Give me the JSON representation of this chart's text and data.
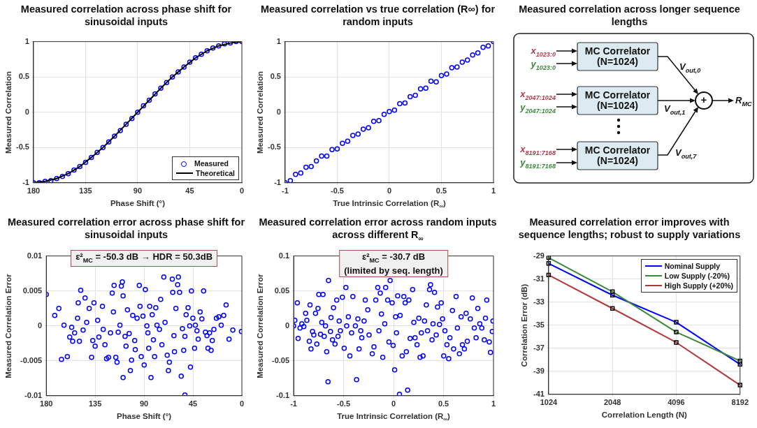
{
  "chart_data": [
    {
      "type": "line",
      "title": "Measured correlation across phase shift for sinusoidal inputs",
      "xlabel": "Phase Shift (°)",
      "ylabel": "Measured Correlation",
      "xlim": [
        180,
        0
      ],
      "xticks": [
        180,
        135,
        90,
        45,
        0
      ],
      "ylim": [
        -1,
        1
      ],
      "yticks": [
        -1,
        -0.5,
        0,
        0.5,
        1
      ],
      "grid": true,
      "legend": "bottom right",
      "series": [
        {
          "name": "Measured",
          "type": "scatter",
          "marker": "circle",
          "color": "#0000ff",
          "x": [
            180,
            175,
            170,
            165,
            160,
            155,
            150,
            145,
            140,
            135,
            130,
            125,
            120,
            115,
            110,
            105,
            100,
            95,
            90,
            85,
            80,
            75,
            70,
            65,
            60,
            55,
            50,
            45,
            40,
            35,
            30,
            25,
            20,
            15,
            10,
            5,
            0
          ],
          "values": [
            -1,
            -1,
            -0.98,
            -0.97,
            -0.94,
            -0.91,
            -0.87,
            -0.82,
            -0.77,
            -0.71,
            -0.64,
            -0.57,
            -0.5,
            -0.42,
            -0.34,
            -0.26,
            -0.17,
            -0.09,
            0,
            0.09,
            0.17,
            0.26,
            0.34,
            0.42,
            0.5,
            0.57,
            0.64,
            0.71,
            0.77,
            0.82,
            0.87,
            0.91,
            0.94,
            0.97,
            0.98,
            1,
            1
          ]
        },
        {
          "name": "Theoretical",
          "type": "line",
          "color": "#000000",
          "x": [
            180,
            170,
            160,
            150,
            140,
            130,
            120,
            110,
            100,
            90,
            80,
            70,
            60,
            50,
            40,
            30,
            20,
            10,
            0
          ],
          "values": [
            -1,
            -0.98,
            -0.94,
            -0.87,
            -0.77,
            -0.64,
            -0.5,
            -0.34,
            -0.17,
            0,
            0.17,
            0.34,
            0.5,
            0.64,
            0.77,
            0.87,
            0.94,
            0.98,
            1
          ]
        }
      ]
    },
    {
      "type": "scatter",
      "title": "Measured correlation vs true correlation (R∞) for random inputs",
      "xlabel": "True Intrinsic Correlation (R$_{∞}$)",
      "ylabel": "Measured Correlation",
      "xlim": [
        -1,
        1
      ],
      "xticks": [
        -1,
        -0.5,
        0,
        0.5,
        1
      ],
      "ylim": [
        -1,
        1
      ],
      "yticks": [
        -1,
        -0.5,
        0,
        0.5,
        1
      ],
      "grid": true,
      "marker": "circle",
      "series": [
        {
          "color": "#0000ff",
          "x": [
            -1,
            -0.95,
            -0.9,
            -0.85,
            -0.8,
            -0.75,
            -0.7,
            -0.65,
            -0.6,
            -0.55,
            -0.5,
            -0.45,
            -0.4,
            -0.35,
            -0.3,
            -0.25,
            -0.2,
            -0.15,
            -0.1,
            -0.05,
            0,
            0.05,
            0.1,
            0.15,
            0.2,
            0.25,
            0.3,
            0.35,
            0.4,
            0.45,
            0.5,
            0.55,
            0.6,
            0.65,
            0.7,
            0.75,
            0.8,
            0.85,
            0.9,
            0.95,
            1
          ],
          "values": [
            -1,
            -0.97,
            -0.88,
            -0.86,
            -0.78,
            -0.77,
            -0.69,
            -0.62,
            -0.62,
            -0.53,
            -0.52,
            -0.44,
            -0.41,
            -0.33,
            -0.31,
            -0.24,
            -0.22,
            -0.13,
            -0.12,
            -0.03,
            0.01,
            0.03,
            0.12,
            0.13,
            0.22,
            0.24,
            0.33,
            0.34,
            0.44,
            0.43,
            0.52,
            0.54,
            0.63,
            0.64,
            0.71,
            0.74,
            0.81,
            0.84,
            0.92,
            0.94,
            1
          ]
        }
      ]
    },
    {
      "type": "other",
      "title": "Measured correlation across longer sequence lengths",
      "annotations": [
        "x$_{1023:0}$",
        "y$_{1023:0}$",
        "x$_{2047:1024}$",
        "y$_{2047:1024}$",
        "x$_{8191:7168}$",
        "y$_{8191:7168}$",
        "MC Correlator\n(N=1024)",
        "MC Correlator\n(N=1024)",
        "MC Correlator\n(N=1024)",
        "V$_{out,0}$",
        "V$_{out,1}$",
        "V$_{out,7}$",
        "+",
        "R$_{MC}$"
      ]
    },
    {
      "type": "scatter",
      "title": "Measured correlation error across phase shift for sinusoidal inputs",
      "xlabel": "Phase Shift (°)",
      "ylabel": "Measured Correlation Error",
      "xlim": [
        180,
        0
      ],
      "xticks": [
        180,
        135,
        90,
        45,
        0
      ],
      "ylim": [
        -0.01,
        0.01
      ],
      "yticks": [
        -0.01,
        -0.005,
        0,
        0.005,
        0.01
      ],
      "grid": true,
      "marker": "circle",
      "annotations": [
        "ε²$_{MC}$ = -50.3 dB → HDR = 50.3dB"
      ],
      "series": [
        {
          "color": "#0000ff",
          "x": [
            180,
            172.2,
            168.4,
            166,
            163.7,
            160.6,
            158.4,
            156.6,
            155.7,
            153.9,
            150.6,
            151.2,
            149.5,
            148.3,
            146.1,
            144.3,
            142.8,
            140.5,
            138.3,
            137.2,
            136.1,
            135,
            132.7,
            131.6,
            128.3,
            127.6,
            126,
            124.5,
            122.7,
            120.9,
            119.3,
            118.2,
            117.6,
            116,
            114.9,
            113.8,
            112.2,
            110.9,
            110,
            109.3,
            109.3,
            107.5,
            106.6,
            105.3,
            103.7,
            102.6,
            101.5,
            100.4,
            98.6,
            98.1,
            96.4,
            94.4,
            93.7,
            92.6,
            91,
            89.9,
            88.8,
            87.4,
            86.5,
            85.7,
            84.8,
            83.6,
            82.5,
            81.4,
            80.3,
            79.2,
            78.1,
            75.8,
            74.7,
            73.6,
            71.8,
            70.7,
            68.7,
            67.6,
            66.7,
            64,
            63.6,
            62.5,
            62,
            60.7,
            59.1,
            58.4,
            57.3,
            55.8,
            54.7,
            53.5,
            52.4,
            52.4,
            51.3,
            49.5,
            48,
            47.3,
            46.4,
            45.1,
            43.5,
            42.8,
            41.3,
            40.2,
            38.4,
            36.8,
            35.2,
            33.5,
            32.1,
            31.2,
            29.7,
            28.3,
            27.2,
            25.7,
            23.4,
            21.2,
            19,
            16.7,
            14.5,
            11.8,
            8.3,
            0.4
          ],
          "values": [
            0.0045,
            0.0015,
            0.0025,
            -0.0048,
            0.0001,
            -0.0044,
            -0.0016,
            -0.0002,
            -0.0022,
            -0.001,
            0.0033,
            0.0011,
            -0.0022,
            0.0051,
            -0.0006,
            0.004,
            0.0005,
            0.0025,
            -0.0045,
            -0.0021,
            0.0033,
            -0.0029,
            0.0008,
            -0.0016,
            0.0028,
            -0.0005,
            -0.0027,
            -0.0047,
            -0.0045,
            -0.001,
            0.0047,
            0.002,
            0.0058,
            -0.0045,
            -0.0052,
            -0.0009,
            0.0001,
            0.0057,
            0.0063,
            0.0043,
            -0.0074,
            -0.0015,
            -0.0029,
            0.0023,
            -0.0011,
            -0.0064,
            -0.0049,
            0.0015,
            -0.0021,
            -0.0034,
            0.0011,
            0.0058,
            0.0028,
            -0.0044,
            0.0014,
            -0.0056,
            0.0052,
            0,
            -0.001,
            -0.0032,
            0.0028,
            -0.0074,
            0.0016,
            -0.002,
            -0.0044,
            0.0026,
            0.0001,
            -0.0005,
            0.0038,
            -0.0027,
            0.007,
            0.0005,
            -0.0042,
            -0.0064,
            -0.0052,
            0.0067,
            0.0048,
            -0.0014,
            -0.0037,
            0.0025,
            0.0059,
            0.007,
            0.0048,
            -0.0072,
            -0.0004,
            -0.0035,
            -0.0015,
            -0.0099,
            0.0016,
            0.0026,
            0,
            -0.0059,
            0.005,
            0.0011,
            -0.0032,
            0.0001,
            -0.0007,
            -0.0019,
            0.002,
            0.001,
            0.005,
            -0.0009,
            -0.0014,
            -0.0032,
            -0.001,
            -0.0035,
            -0.0021,
            -0.0005,
            0.0011,
            0.0013,
            0.0001,
            0.0015,
            0.003,
            -0.0019,
            -0.0006,
            -0.0008
          ]
        }
      ]
    },
    {
      "type": "scatter",
      "title": "Measured correlation error across random inputs across different R$_{∞}$",
      "xlabel": "True Intrinsic Correlation (R$_{∞}$)",
      "ylabel": "Measured Correlation Error",
      "xlim": [
        -1,
        1
      ],
      "xticks": [
        -1,
        -0.5,
        0,
        0.5,
        1
      ],
      "ylim": [
        -0.1,
        0.1
      ],
      "yticks": [
        -0.1,
        -0.05,
        0,
        0.05,
        0.1
      ],
      "grid": true,
      "marker": "circle",
      "annotations": [
        "ε²$_{MC}$ = -30.7 dB\n(limited by seq. length)"
      ],
      "series": [
        {
          "color": "#0000ff",
          "x": [
            -1,
            -0.988,
            -0.963,
            -0.955,
            -0.936,
            -0.918,
            -0.898,
            -0.88,
            -0.868,
            -0.843,
            -0.836,
            -0.826,
            -0.811,
            -0.798,
            -0.781,
            -0.768,
            -0.756,
            -0.748,
            -0.731,
            -0.718,
            -0.706,
            -0.694,
            -0.681,
            -0.669,
            -0.656,
            -0.651,
            -0.631,
            -0.626,
            -0.611,
            -0.601,
            -0.586,
            -0.569,
            -0.556,
            -0.544,
            -0.532,
            -0.512,
            -0.494,
            -0.477,
            -0.469,
            -0.452,
            -0.437,
            -0.42,
            -0.407,
            -0.382,
            -0.37,
            -0.357,
            -0.345,
            -0.328,
            -0.318,
            -0.295,
            -0.283,
            -0.258,
            -0.245,
            -0.213,
            -0.196,
            -0.178,
            -0.158,
            -0.146,
            -0.133,
            -0.121,
            -0.108,
            -0.088,
            -0.079,
            -0.059,
            -0.046,
            -0.034,
            -0.014,
            -0.004,
            0.011,
            0.021,
            0.029,
            0.041,
            0.059,
            0.066,
            0.086,
            0.103,
            0.116,
            0.128,
            0.141,
            0.153,
            0.166,
            0.191,
            0.203,
            0.215,
            0.235,
            0.253,
            0.265,
            0.278,
            0.295,
            0.31,
            0.328,
            0.34,
            0.36,
            0.37,
            0.385,
            0.395,
            0.41,
            0.427,
            0.44,
            0.46,
            0.477,
            0.49,
            0.502,
            0.514,
            0.534,
            0.552,
            0.564,
            0.589,
            0.601,
            0.626,
            0.639,
            0.659,
            0.676,
            0.689,
            0.709,
            0.726,
            0.738,
            0.768,
            0.788,
            0.808,
            0.826,
            0.843,
            0.863,
            0.883,
            0.908,
            0.92,
            0.933,
            0.958,
            0.97,
            0.988,
            0.995
          ],
          "values": [
            0,
            0.008,
            0.033,
            -0.018,
            -0.003,
            0.003,
            -0.001,
            0.018,
            0.008,
            -0.022,
            0.03,
            -0.033,
            -0.008,
            -0.013,
            0.018,
            -0.026,
            0.025,
            0.045,
            -0.012,
            0.005,
            0.045,
            -0.015,
            0,
            -0.037,
            -0.08,
            0.065,
            -0.008,
            0.012,
            -0.02,
            0.026,
            -0.026,
            0.037,
            -0.015,
            0.007,
            -0.007,
            0.041,
            -0.032,
            0.055,
            0,
            0.013,
            -0.043,
            -0.01,
            0.042,
            0,
            -0.077,
            0.01,
            -0.033,
            -0.007,
            -0.017,
            0.007,
            0.037,
            0.023,
            -0.013,
            -0.04,
            -0.03,
            0.037,
            0.055,
            -0.007,
            0.047,
            0.017,
            -0.045,
            0.003,
            0.055,
            0.037,
            -0.023,
            0.065,
            0.033,
            -0.028,
            -0.063,
            0.013,
            -0.01,
            0.043,
            -0.098,
            0.015,
            -0.043,
            0.042,
            0.033,
            -0.037,
            -0.092,
            0.037,
            -0.018,
            0.052,
            0.005,
            -0.017,
            -0.027,
            0.011,
            -0.045,
            -0.01,
            -0.043,
            0.007,
            0.03,
            -0.007,
            0.052,
            0.059,
            -0.02,
            0.003,
            0.048,
            -0.013,
            0.027,
            0.002,
            0.033,
            0.01,
            -0.043,
            -0.007,
            -0.027,
            -0.047,
            -0.017,
            0.022,
            -0.033,
            0.042,
            -0.003,
            -0.04,
            0.013,
            -0.027,
            -0.033,
            0.018,
            -0.022,
            0.01,
            0.04,
            -0.003,
            -0.017,
            0.025,
            0.003,
            -0.003,
            -0.02,
            0.011,
            0.037,
            -0.023,
            -0.038,
            -0.008,
            0.007
          ]
        }
      ]
    },
    {
      "type": "line",
      "title": "Measured correlation error improves with sequence lengths; robust to supply variations",
      "xlabel": "Correlation Length (N)",
      "ylabel": "Correlation Error (dB)",
      "categories": [
        "1024",
        "2048",
        "4096",
        "8192"
      ],
      "ylim": [
        -41,
        -29
      ],
      "yticks": [
        -41,
        -39,
        -37,
        -35,
        -33,
        -31,
        -29
      ],
      "grid": true,
      "legend": "top right",
      "marker": "square",
      "series": [
        {
          "name": "Nominal Supply",
          "color": "#0000ff",
          "values": [
            -29.65,
            -32.4,
            -34.75,
            -38.4
          ]
        },
        {
          "name": "Low Supply (-20%)",
          "color": "#3a8a3a",
          "values": [
            -29.15,
            -32.1,
            -35.6,
            -38.1
          ]
        },
        {
          "name": "High Supply (+20%)",
          "color": "#b03a3a",
          "values": [
            -30.65,
            -33.55,
            -36.5,
            -40.2
          ]
        }
      ]
    }
  ]
}
